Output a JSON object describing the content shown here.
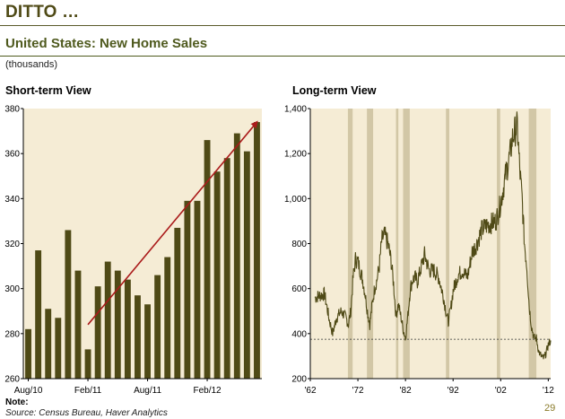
{
  "page": {
    "title": "DITTO …",
    "subtitle": "United States: New Home Sales",
    "units": "(thousands)",
    "note_label": "Note:",
    "source": "Source: Census Bureau, Haver Analytics",
    "page_number": "29"
  },
  "colors": {
    "bar": "#4f4a16",
    "line": "#4f4a16",
    "plot_bg": "#f5ecd5",
    "recession": "#d2c7a6",
    "trend_arrow": "#aa1a1a",
    "title": "#4f4a16"
  },
  "chart_data": [
    {
      "type": "bar",
      "title": "Short-term View",
      "ylim": [
        260,
        380
      ],
      "yticks": [
        260,
        280,
        300,
        320,
        340,
        360,
        380
      ],
      "xtick_labels": [
        "Aug/10",
        "Feb/11",
        "Aug/11",
        "Feb/12"
      ],
      "xtick_positions": [
        0,
        6,
        12,
        18
      ],
      "values": [
        282,
        317,
        291,
        287,
        326,
        308,
        273,
        301,
        312,
        308,
        304,
        297,
        293,
        306,
        314,
        327,
        339,
        339,
        366,
        352,
        358,
        369,
        361,
        374
      ],
      "annotations": [
        {
          "type": "trend-arrow",
          "from": {
            "index": 6,
            "value": 284
          },
          "to": {
            "index": 23,
            "value": 374
          }
        }
      ]
    },
    {
      "type": "line",
      "title": "Long-term View",
      "ylim": [
        200,
        1400
      ],
      "yticks": [
        200,
        400,
        600,
        800,
        1000,
        1200,
        1400
      ],
      "ytick_labels": [
        "200",
        "400",
        "600",
        "800",
        "1,000",
        "1,200",
        "1,400"
      ],
      "xlim": [
        1962,
        2012.5
      ],
      "xtick_values": [
        1962,
        1972,
        1982,
        1992,
        2002,
        2012
      ],
      "xtick_labels": [
        "'62",
        "'72",
        "'82",
        "'92",
        "'02",
        "'12"
      ],
      "reference_line": 375,
      "recessions": [
        [
          1969.9,
          1970.9
        ],
        [
          1973.9,
          1975.2
        ],
        [
          1980.0,
          1980.5
        ],
        [
          1981.5,
          1982.9
        ],
        [
          1990.5,
          1991.2
        ],
        [
          2001.2,
          2001.9
        ],
        [
          2007.9,
          2009.5
        ]
      ],
      "x": [
        1963.0,
        1964.0,
        1965.0,
        1966.0,
        1966.7,
        1967.5,
        1968.5,
        1969.5,
        1970.0,
        1970.5,
        1971.0,
        1971.5,
        1972.0,
        1972.5,
        1973.0,
        1973.5,
        1974.0,
        1974.5,
        1975.0,
        1975.5,
        1976.0,
        1976.5,
        1977.0,
        1977.5,
        1978.0,
        1978.5,
        1979.0,
        1979.5,
        1980.0,
        1980.5,
        1981.0,
        1981.5,
        1982.0,
        1982.5,
        1983.0,
        1983.5,
        1984.0,
        1984.5,
        1985.0,
        1986.0,
        1987.0,
        1988.0,
        1989.0,
        1990.0,
        1990.5,
        1991.0,
        1991.5,
        1992.0,
        1993.0,
        1994.0,
        1995.0,
        1996.0,
        1997.0,
        1998.0,
        1999.0,
        2000.0,
        2001.0,
        2002.0,
        2003.0,
        2004.0,
        2004.5,
        2005.0,
        2005.5,
        2006.0,
        2006.5,
        2007.0,
        2007.5,
        2008.0,
        2008.5,
        2009.0,
        2009.5,
        2010.0,
        2010.5,
        2011.0,
        2011.5,
        2012.0,
        2012.5
      ],
      "y": [
        560,
        570,
        575,
        460,
        400,
        470,
        500,
        470,
        440,
        500,
        650,
        730,
        720,
        680,
        640,
        580,
        500,
        440,
        530,
        600,
        640,
        700,
        810,
        840,
        820,
        780,
        720,
        620,
        480,
        530,
        480,
        420,
        380,
        480,
        600,
        640,
        650,
        630,
        670,
        750,
        680,
        680,
        650,
        560,
        500,
        450,
        510,
        590,
        660,
        680,
        650,
        760,
        800,
        860,
        880,
        890,
        900,
        980,
        1100,
        1200,
        1270,
        1300,
        1320,
        1130,
        1000,
        800,
        700,
        520,
        430,
        380,
        380,
        320,
        300,
        290,
        310,
        350,
        370
      ]
    }
  ]
}
